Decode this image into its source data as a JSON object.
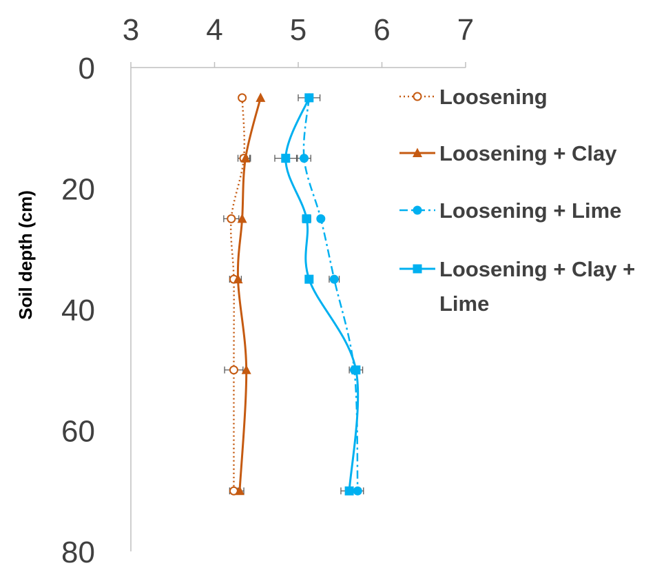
{
  "chart_data": {
    "type": "line",
    "xlim": [
      3,
      7
    ],
    "xticks": [
      "3",
      "4",
      "5",
      "6",
      "7"
    ],
    "ylim": [
      0,
      80
    ],
    "yticks": [
      "0",
      "20",
      "40",
      "60",
      "80"
    ],
    "y_inverted": true,
    "xlabel": "",
    "ylabel": "Soil depth (cm)",
    "grid": false,
    "legend_position": "right",
    "depths": [
      5,
      15,
      25,
      35,
      50,
      70
    ],
    "series": [
      {
        "name": "Loosening",
        "color": "#C55A11",
        "line": "dotted",
        "marker": "open-circle",
        "x": [
          4.33,
          4.35,
          4.2,
          4.23,
          4.23,
          4.23
        ],
        "err": [
          0,
          0.07,
          0.09,
          0.05,
          0.11,
          0.05
        ]
      },
      {
        "name": "Loosening + Clay",
        "color": "#C55A11",
        "line": "solid",
        "marker": "triangle",
        "x": [
          4.55,
          4.37,
          4.33,
          4.28,
          4.38,
          4.3
        ],
        "err": [
          0,
          0.06,
          0,
          0.04,
          0,
          0.05
        ]
      },
      {
        "name": "Loosening + Lime",
        "color": "#00B0F0",
        "line": "dashdot",
        "marker": "circle",
        "x": [
          5.13,
          5.07,
          5.27,
          5.43,
          5.67,
          5.71
        ],
        "err": [
          0,
          0.08,
          0,
          0.06,
          0,
          0.07
        ]
      },
      {
        "name": "Loosening + Clay + Lime",
        "color": "#00B0F0",
        "line": "solid",
        "marker": "square",
        "x": [
          5.13,
          4.85,
          5.1,
          5.13,
          5.69,
          5.61
        ],
        "err": [
          0.13,
          0.13,
          0.05,
          0,
          0.08,
          0.1
        ]
      }
    ],
    "legend": [
      "Loosening",
      "Loosening + Clay",
      "Loosening + Lime",
      "Loosening + Clay + Lime"
    ]
  }
}
